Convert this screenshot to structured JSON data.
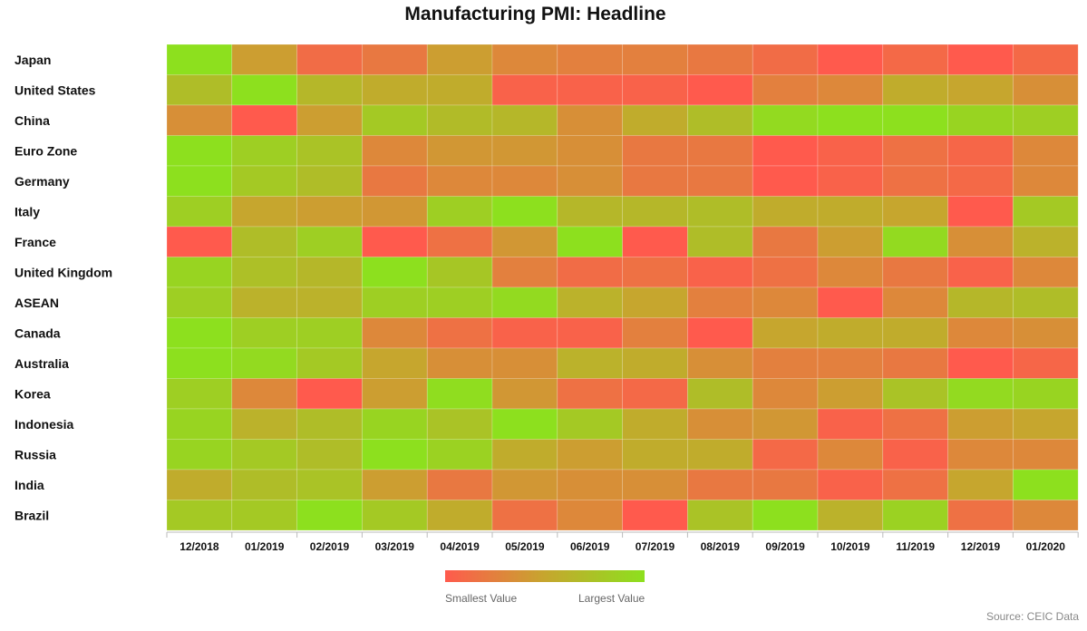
{
  "colors": {
    "min": "#ff5a4d",
    "mid": "#c6a62e",
    "max": "#8de01e",
    "grid": "#ffffff"
  },
  "chart_data": {
    "type": "heatmap",
    "title": "Manufacturing PMI: Headline",
    "rows": [
      "Japan",
      "United States",
      "China",
      "Euro Zone",
      "Germany",
      "Italy",
      "France",
      "United Kingdom",
      "ASEAN",
      "Canada",
      "Australia",
      "Korea",
      "Indonesia",
      "Russia",
      "India",
      "Brazil"
    ],
    "columns": [
      "12/2018",
      "01/2019",
      "02/2019",
      "03/2019",
      "04/2019",
      "05/2019",
      "06/2019",
      "07/2019",
      "08/2019",
      "09/2019",
      "10/2019",
      "11/2019",
      "12/2019",
      "01/2020"
    ],
    "values": [
      [
        1.0,
        0.45,
        0.12,
        0.2,
        0.45,
        0.3,
        0.25,
        0.25,
        0.2,
        0.12,
        0.0,
        0.1,
        0.0,
        0.1
      ],
      [
        0.7,
        1.0,
        0.65,
        0.55,
        0.55,
        0.05,
        0.05,
        0.05,
        0.0,
        0.25,
        0.3,
        0.55,
        0.5,
        0.35
      ],
      [
        0.35,
        0.0,
        0.45,
        0.8,
        0.68,
        0.65,
        0.35,
        0.55,
        0.7,
        0.95,
        1.0,
        1.0,
        0.9,
        0.85
      ],
      [
        1.0,
        0.85,
        0.75,
        0.3,
        0.4,
        0.4,
        0.35,
        0.2,
        0.2,
        0.0,
        0.05,
        0.15,
        0.08,
        0.3
      ],
      [
        1.0,
        0.8,
        0.7,
        0.2,
        0.3,
        0.3,
        0.35,
        0.2,
        0.2,
        0.0,
        0.05,
        0.15,
        0.1,
        0.3
      ],
      [
        0.85,
        0.5,
        0.45,
        0.4,
        0.85,
        1.0,
        0.65,
        0.65,
        0.7,
        0.55,
        0.55,
        0.5,
        0.0,
        0.8
      ],
      [
        0.0,
        0.7,
        0.85,
        0.0,
        0.15,
        0.4,
        1.0,
        0.0,
        0.7,
        0.2,
        0.45,
        0.95,
        0.35,
        0.6
      ],
      [
        0.9,
        0.72,
        0.65,
        1.0,
        0.78,
        0.25,
        0.12,
        0.15,
        0.05,
        0.15,
        0.3,
        0.2,
        0.05,
        0.3
      ],
      [
        0.85,
        0.6,
        0.6,
        0.85,
        0.85,
        0.95,
        0.6,
        0.5,
        0.25,
        0.3,
        0.0,
        0.3,
        0.65,
        0.7
      ],
      [
        1.0,
        0.85,
        0.85,
        0.3,
        0.15,
        0.05,
        0.05,
        0.25,
        0.0,
        0.5,
        0.55,
        0.55,
        0.3,
        0.35
      ],
      [
        1.0,
        0.95,
        0.8,
        0.5,
        0.35,
        0.35,
        0.6,
        0.55,
        0.35,
        0.25,
        0.25,
        0.2,
        0.0,
        0.08
      ],
      [
        0.85,
        0.3,
        0.0,
        0.45,
        0.97,
        0.4,
        0.15,
        0.1,
        0.7,
        0.3,
        0.45,
        0.75,
        0.95,
        0.9
      ],
      [
        0.9,
        0.6,
        0.7,
        0.9,
        0.75,
        1.0,
        0.8,
        0.55,
        0.35,
        0.4,
        0.05,
        0.15,
        0.45,
        0.5
      ],
      [
        0.9,
        0.8,
        0.7,
        1.0,
        0.88,
        0.55,
        0.45,
        0.55,
        0.55,
        0.1,
        0.3,
        0.05,
        0.3,
        0.3
      ],
      [
        0.55,
        0.7,
        0.75,
        0.45,
        0.2,
        0.4,
        0.35,
        0.35,
        0.2,
        0.2,
        0.05,
        0.15,
        0.5,
        1.0
      ],
      [
        0.8,
        0.8,
        1.0,
        0.8,
        0.55,
        0.15,
        0.3,
        0.0,
        0.75,
        1.0,
        0.6,
        0.88,
        0.15,
        0.3
      ]
    ],
    "legend": {
      "min_label": "Smallest Value",
      "max_label": "Largest Value"
    }
  },
  "footer": {
    "source": "Source: CEIC Data"
  }
}
